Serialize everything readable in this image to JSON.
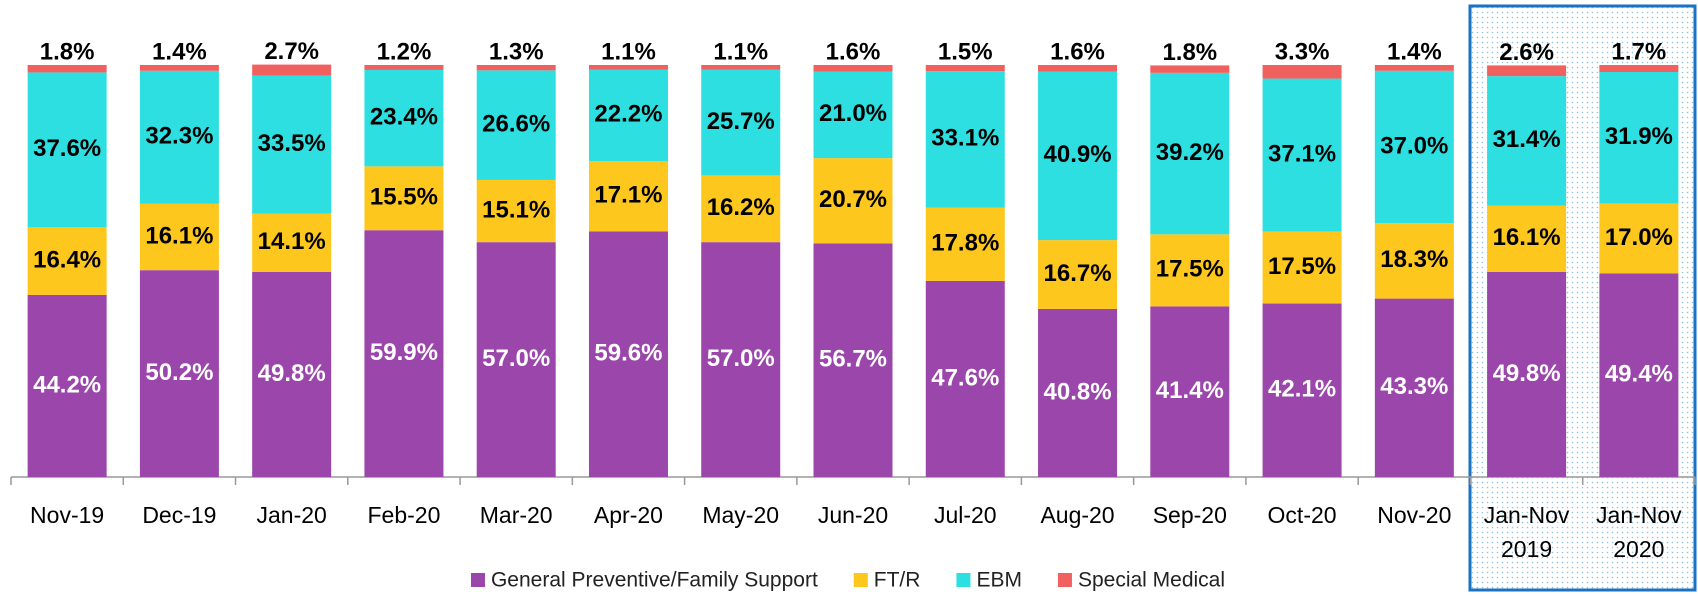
{
  "chart_data": {
    "type": "stacked_bar",
    "categories": [
      "Nov-19",
      "Dec-19",
      "Jan-20",
      "Feb-20",
      "Mar-20",
      "Apr-20",
      "May-20",
      "Jun-20",
      "Jul-20",
      "Aug-20",
      "Sep-20",
      "Oct-20",
      "Nov-20",
      "Jan-Nov 2019",
      "Jan-Nov 2020"
    ],
    "ylim": [
      0,
      100
    ],
    "series": [
      {
        "name": "General Preventive/Family Support",
        "color": "#9b46ab",
        "values": [
          44.2,
          50.2,
          49.8,
          59.9,
          57.0,
          59.6,
          57.0,
          56.7,
          47.6,
          40.8,
          41.4,
          42.1,
          43.3,
          49.8,
          49.4
        ],
        "value_labels": [
          "44.2%",
          "50.2%",
          "49.8%",
          "59.9%",
          "57.0%",
          "59.6%",
          "57.0%",
          "56.7%",
          "47.6%",
          "40.8%",
          "41.4%",
          "42.1%",
          "43.3%",
          "49.8%",
          "49.4%"
        ]
      },
      {
        "name": "FT/R",
        "color": "#fdc71e",
        "values": [
          16.4,
          16.1,
          14.1,
          15.5,
          15.1,
          17.1,
          16.2,
          20.7,
          17.8,
          16.7,
          17.5,
          17.5,
          18.3,
          16.1,
          17.0
        ],
        "value_labels": [
          "16.4%",
          "16.1%",
          "14.1%",
          "15.5%",
          "15.1%",
          "17.1%",
          "16.2%",
          "20.7%",
          "17.8%",
          "16.7%",
          "17.5%",
          "17.5%",
          "18.3%",
          "16.1%",
          "17.0%"
        ]
      },
      {
        "name": "EBM",
        "color": "#2ddfe0",
        "values": [
          37.6,
          32.3,
          33.5,
          23.4,
          26.6,
          22.2,
          25.7,
          21.0,
          33.1,
          40.9,
          39.2,
          37.1,
          37.0,
          31.4,
          31.9
        ],
        "value_labels": [
          "37.6%",
          "32.3%",
          "33.5%",
          "23.4%",
          "26.6%",
          "22.2%",
          "25.7%",
          "21.0%",
          "33.1%",
          "40.9%",
          "39.2%",
          "37.1%",
          "37.0%",
          "31.4%",
          "31.9%"
        ]
      },
      {
        "name": "Special Medical",
        "color": "#f0605e",
        "values": [
          1.8,
          1.4,
          2.7,
          1.2,
          1.3,
          1.1,
          1.1,
          1.6,
          1.5,
          1.6,
          1.8,
          3.3,
          1.4,
          2.6,
          1.7
        ],
        "value_labels": [
          "1.8%",
          "1.4%",
          "2.7%",
          "1.2%",
          "1.3%",
          "1.1%",
          "1.1%",
          "1.6%",
          "1.5%",
          "1.6%",
          "1.8%",
          "3.3%",
          "1.4%",
          "2.6%",
          "1.7%"
        ]
      }
    ]
  }
}
